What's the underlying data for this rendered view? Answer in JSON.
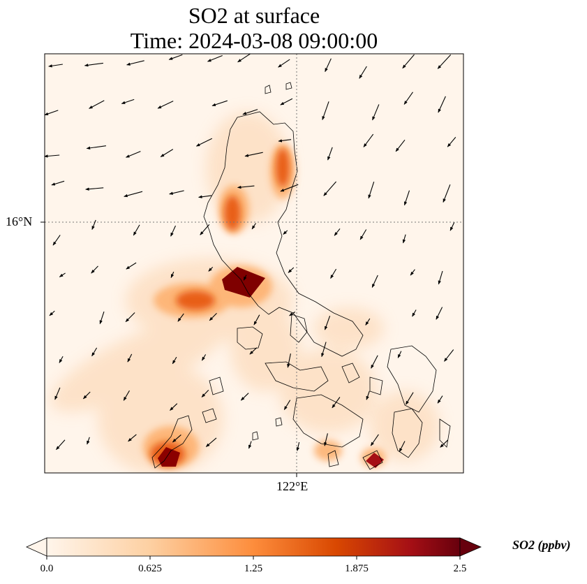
{
  "title": {
    "line1": "SO2 at surface",
    "line2": "Time: 2024-03-08 09:00:00"
  },
  "axes": {
    "lat_label": "16°N",
    "lon_label": "122°E"
  },
  "colorbar": {
    "label": "SO2 (ppbv)",
    "ticks": [
      "0.0",
      "0.625",
      "1.25",
      "1.875",
      "2.5"
    ],
    "min": 0.0,
    "max": 2.5,
    "colors": [
      "#fff5eb",
      "#fdd0a2",
      "#fd8d3c",
      "#d94801",
      "#a50f15",
      "#67000d"
    ]
  },
  "map": {
    "background_color": "#fff5eb",
    "gridline_style": "dotted"
  }
}
